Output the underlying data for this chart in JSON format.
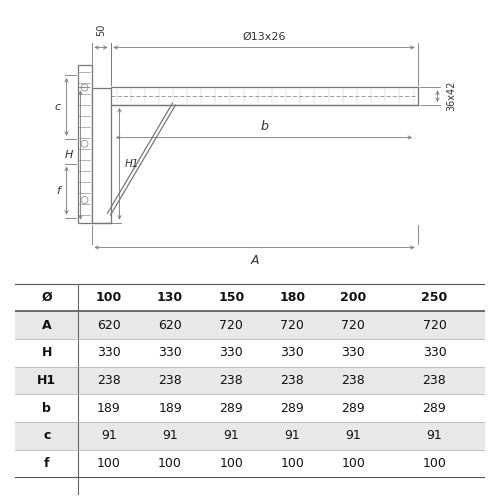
{
  "table_headers": [
    "Ø",
    "100",
    "130",
    "150",
    "180",
    "200",
    "250"
  ],
  "table_rows": [
    [
      "A",
      "620",
      "620",
      "720",
      "720",
      "720",
      "720"
    ],
    [
      "H",
      "330",
      "330",
      "330",
      "330",
      "330",
      "330"
    ],
    [
      "H1",
      "238",
      "238",
      "238",
      "238",
      "238",
      "238"
    ],
    [
      "b",
      "189",
      "189",
      "289",
      "289",
      "289",
      "289"
    ],
    [
      "c",
      "91",
      "91",
      "91",
      "91",
      "91",
      "91"
    ],
    [
      "f",
      "100",
      "100",
      "100",
      "100",
      "100",
      "100"
    ]
  ],
  "shaded_rows": [
    0,
    2,
    4
  ],
  "dim_50": "50",
  "dim_A": "A",
  "dim_b": "b",
  "dim_H": "H",
  "dim_H1": "H1",
  "dim_c": "c",
  "dim_f": "f",
  "dim_hole": "Ø13x26",
  "dim_section": "36x42",
  "line_color": "#777777",
  "shaded_color": "#e8e8e8",
  "bg_color": "#ffffff"
}
